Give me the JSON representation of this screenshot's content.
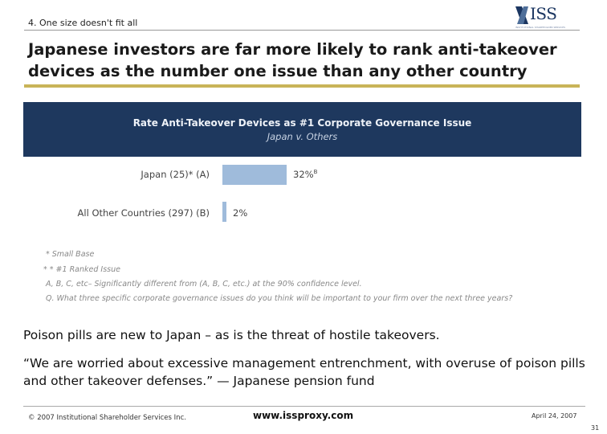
{
  "header": {
    "section": "4. One size doesn't fit all",
    "logo_text": "ISS",
    "logo_tagline": "INSTITUTIONAL SHAREHOLDER SERVICES"
  },
  "headline": "Japanese investors are far more likely to rank anti-takeover devices as the number one issue than any other country",
  "chart_data": {
    "type": "bar",
    "orientation": "horizontal",
    "title": "Rate Anti-Takeover Devices as #1 Corporate Governance Issue",
    "subtitle": "Japan v. Others",
    "categories": [
      "Japan (25)* (A)",
      "All Other Countries (297) (B)"
    ],
    "values": [
      32,
      2
    ],
    "value_labels": [
      "32%",
      "2%"
    ],
    "value_superscripts": [
      "B",
      ""
    ],
    "unit": "%",
    "xlim": [
      0,
      100
    ],
    "grid": false,
    "bar_color": "#9fbbdb",
    "header_color": "#1e385e"
  },
  "footnotes": [
    "* Small Base",
    "* * #1 Ranked Issue",
    "A, B, C, etc– Significantly different from (A, B, C, etc.) at the 90% confidence level.",
    "Q. What three specific corporate governance issues do you think will be important to your firm over the next three years?"
  ],
  "body": {
    "line1": "Poison pills are new to Japan – as is the threat of hostile takeovers.",
    "quote_line1": "“We are worried about excessive management entrenchment, with overuse of poison pills",
    "quote_line2": "and other takeover defenses.” — Japanese pension fund"
  },
  "footer": {
    "copyright": "© 2007 Institutional Shareholder Services Inc.",
    "url": "www.issproxy.com",
    "date": "April 24, 2007",
    "page": "31"
  }
}
